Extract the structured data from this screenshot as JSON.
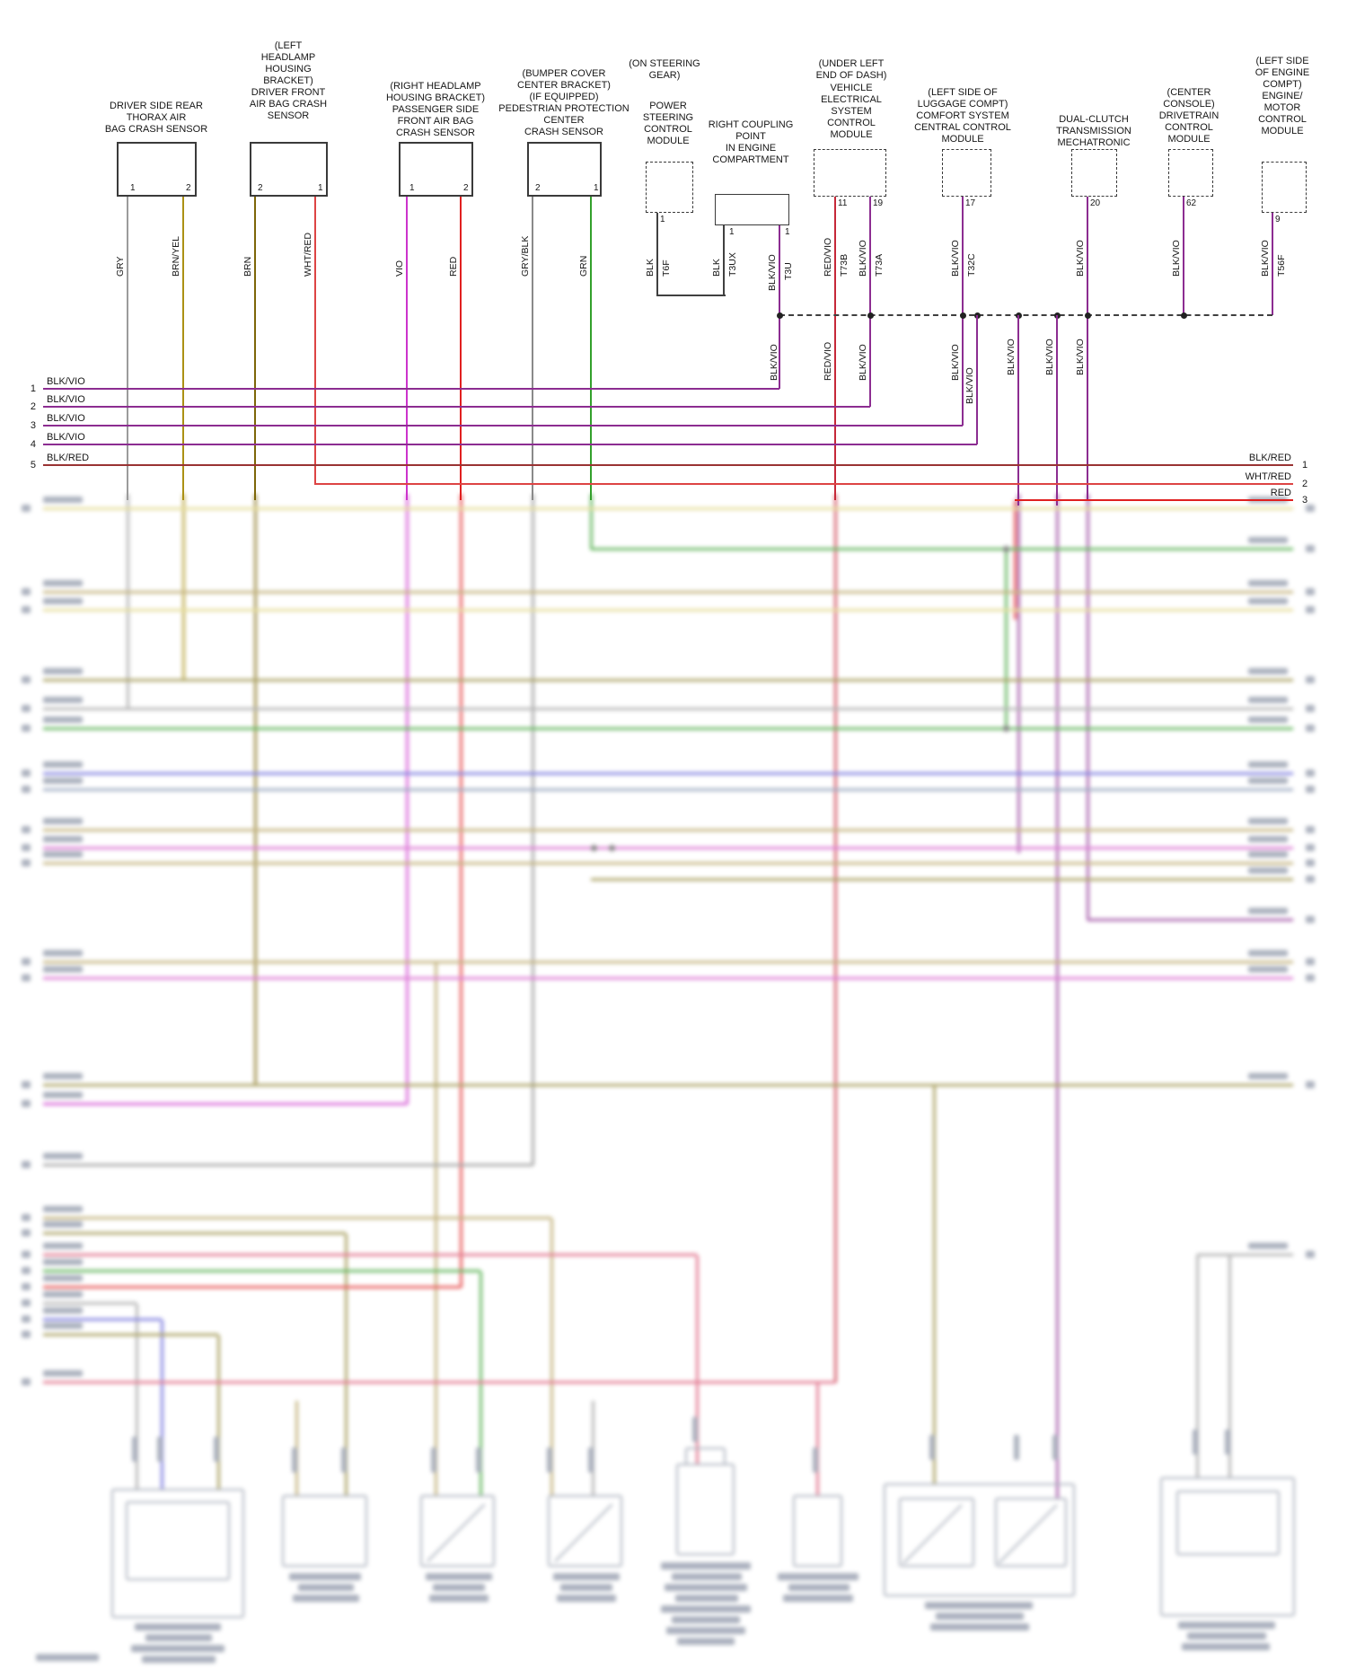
{
  "colors": {
    "GRY": "#9b9b9b",
    "BRN/YEL": "#ab9114",
    "BRN": "#7d6608",
    "WHT/RED": "#dd4444",
    "VIO": "#cc33cc",
    "RED": "#e02020",
    "GRY/BLK": "#8a8a8a",
    "GRN": "#33a02c",
    "BLK": "#404040",
    "BLK/VIO": "#8c2d91",
    "RED/VIO": "#c62838",
    "BLK/RED": "#993333"
  },
  "components": [
    {
      "id": "driver-rear-thorax-sensor",
      "location": "",
      "name": "DRIVER SIDE REAR\nTHORAX AIR\nBAG CRASH SENSOR",
      "pins": [
        {
          "num": "1",
          "wire": "GRY"
        },
        {
          "num": "2",
          "wire": "BRN/YEL"
        }
      ]
    },
    {
      "id": "driver-front-airbag-sensor",
      "location": "(LEFT\nHEADLAMP\nHOUSING\nBRACKET)",
      "name": "DRIVER FRONT\nAIR BAG CRASH\nSENSOR",
      "pins": [
        {
          "num": "2",
          "wire": "BRN"
        },
        {
          "num": "1",
          "wire": "WHT/RED"
        }
      ]
    },
    {
      "id": "passenger-front-airbag-sensor",
      "location": "(RIGHT HEADLAMP\nHOUSING BRACKET)",
      "name": "PASSENGER SIDE\nFRONT AIR BAG\nCRASH SENSOR",
      "pins": [
        {
          "num": "1",
          "wire": "VIO"
        },
        {
          "num": "2",
          "wire": "RED"
        }
      ]
    },
    {
      "id": "pedestrian-protection-sensor",
      "location": "(BUMPER COVER\nCENTER BRACKET)\n(IF EQUIPPED)",
      "name": "PEDESTRIAN PROTECTION\nCENTER\nCRASH SENSOR",
      "pins": [
        {
          "num": "2",
          "wire": "GRY/BLK"
        },
        {
          "num": "1",
          "wire": "GRN"
        }
      ]
    },
    {
      "id": "power-steering-module",
      "location": "(ON STEERING\nGEAR)",
      "name": "POWER\nSTEERING\nCONTROL\nMODULE",
      "pins": [
        {
          "num": "1",
          "wire": "BLK",
          "terminal": "T6F"
        }
      ]
    },
    {
      "id": "vehicle-electrical-module",
      "location": "(UNDER LEFT\nEND OF DASH)",
      "name": "VEHICLE\nELECTRICAL\nSYSTEM\nCONTROL\nMODULE",
      "pins": [
        {
          "num": "11",
          "wire": "RED/VIO",
          "terminal": "T73B"
        },
        {
          "num": "19",
          "wire": "BLK/VIO",
          "terminal": "T73A"
        }
      ]
    },
    {
      "id": "comfort-central-module",
      "location": "(LEFT SIDE OF\nLUGGAGE COMPT)",
      "name": "COMFORT SYSTEM\nCENTRAL CONTROL\nMODULE",
      "pins": [
        {
          "num": "17",
          "wire": "BLK/VIO",
          "terminal": "T32C"
        }
      ]
    },
    {
      "id": "dct-mechatronic",
      "location": "",
      "name": "DUAL-CLUTCH\nTRANSMISSION\nMECHATRONIC",
      "pins": [
        {
          "num": "20",
          "wire": "BLK/VIO"
        }
      ]
    },
    {
      "id": "drivetrain-module",
      "location": "(CENTER\nCONSOLE)",
      "name": "DRIVETRAIN\nCONTROL\nMODULE",
      "pins": [
        {
          "num": "62",
          "wire": "BLK/VIO"
        }
      ]
    },
    {
      "id": "engine-motor-module",
      "location": "(LEFT SIDE\nOF ENGINE\nCOMPT)",
      "name": "ENGINE/\nMOTOR\nCONTROL\nMODULE",
      "pins": [
        {
          "num": "9",
          "wire": "BLK/VIO",
          "terminal": "T56F"
        }
      ]
    }
  ],
  "coupling": {
    "name": "RIGHT COUPLING\nPOINT\nIN ENGINE\nCOMPARTMENT",
    "pins": [
      {
        "num": "1",
        "wire": "BLK",
        "terminal": "T3UX"
      },
      {
        "num": "1",
        "wire": "BLK/VIO",
        "terminal": "T3U"
      }
    ]
  },
  "junction_labels": [
    "BLK/VIO",
    "RED/VIO",
    "BLK/VIO",
    "BLK/VIO",
    "BLK/VIO",
    "BLK/VIO",
    "BLK/VIO",
    "BLK/VIO"
  ],
  "bus_left": [
    {
      "num": "1",
      "label": "BLK/VIO"
    },
    {
      "num": "2",
      "label": "BLK/VIO"
    },
    {
      "num": "3",
      "label": "BLK/VIO"
    },
    {
      "num": "4",
      "label": "BLK/VIO"
    },
    {
      "num": "5",
      "label": "BLK/RED"
    }
  ],
  "bus_right": [
    {
      "num": "1",
      "label": "BLK/RED"
    },
    {
      "num": "2",
      "label": "WHT/RED"
    },
    {
      "num": "3",
      "label": "RED"
    }
  ]
}
